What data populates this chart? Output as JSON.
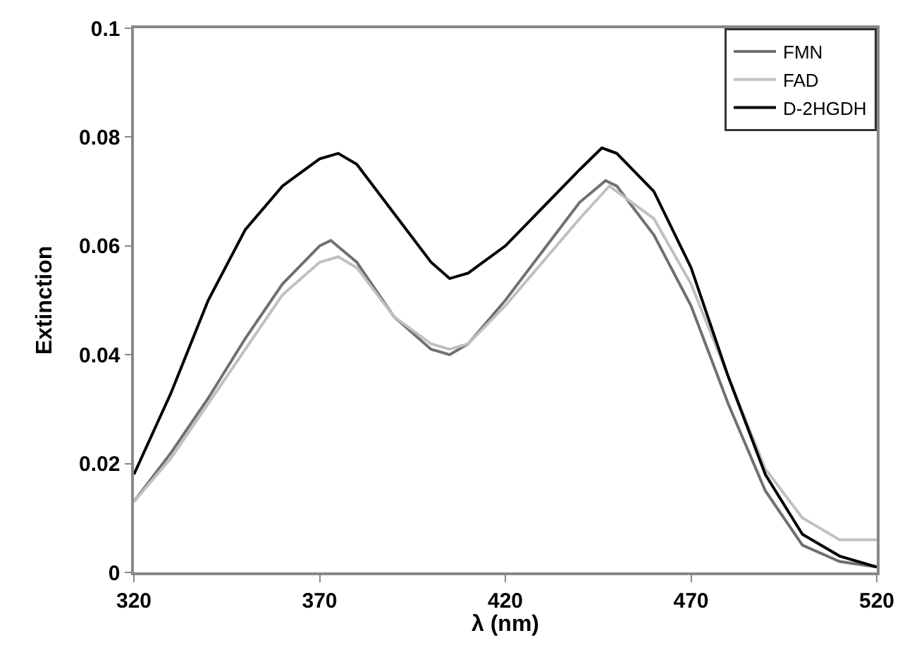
{
  "chart_data": {
    "type": "line",
    "xlabel": "λ (nm)",
    "ylabel": "Extinction",
    "xlim": [
      320,
      520
    ],
    "xticks": [
      320,
      370,
      420,
      470,
      520
    ],
    "ylim": [
      0,
      0.1
    ],
    "yticks": [
      0,
      0.02,
      0.04,
      0.06,
      0.08,
      0.1
    ],
    "legend": "top right",
    "marker": "none",
    "line_style": "solid",
    "series": [
      {
        "name": "FMN",
        "color": "#707070",
        "x": [
          320,
          330,
          340,
          350,
          360,
          370,
          373,
          380,
          390,
          400,
          405,
          410,
          420,
          430,
          440,
          447,
          450,
          460,
          470,
          480,
          490,
          500,
          510,
          520
        ],
        "values": [
          0.013,
          0.022,
          0.032,
          0.043,
          0.053,
          0.06,
          0.061,
          0.057,
          0.047,
          0.041,
          0.04,
          0.042,
          0.05,
          0.059,
          0.068,
          0.072,
          0.071,
          0.062,
          0.049,
          0.031,
          0.015,
          0.005,
          0.002,
          0.001
        ]
      },
      {
        "name": "FAD",
        "color": "#c0c0c0",
        "x": [
          320,
          330,
          340,
          350,
          360,
          370,
          375,
          380,
          390,
          400,
          405,
          410,
          420,
          430,
          440,
          448,
          450,
          460,
          470,
          480,
          490,
          500,
          510,
          520
        ],
        "values": [
          0.013,
          0.021,
          0.031,
          0.041,
          0.051,
          0.057,
          0.058,
          0.056,
          0.047,
          0.042,
          0.041,
          0.042,
          0.049,
          0.057,
          0.065,
          0.071,
          0.07,
          0.065,
          0.053,
          0.036,
          0.019,
          0.01,
          0.006,
          0.006
        ]
      },
      {
        "name": "D-2HGDH",
        "color": "#000000",
        "x": [
          320,
          330,
          340,
          350,
          360,
          370,
          375,
          380,
          390,
          400,
          405,
          410,
          420,
          430,
          440,
          446,
          450,
          460,
          470,
          480,
          490,
          500,
          510,
          520
        ],
        "values": [
          0.018,
          0.033,
          0.05,
          0.063,
          0.071,
          0.076,
          0.077,
          0.075,
          0.066,
          0.057,
          0.054,
          0.055,
          0.06,
          0.067,
          0.074,
          0.078,
          0.077,
          0.07,
          0.056,
          0.036,
          0.018,
          0.007,
          0.003,
          0.001
        ]
      }
    ]
  }
}
